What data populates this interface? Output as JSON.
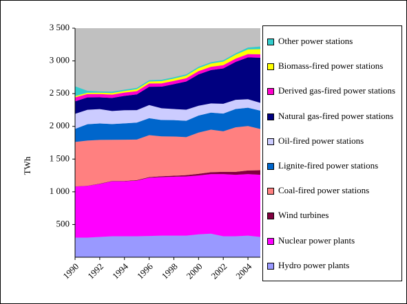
{
  "chart_data": {
    "type": "area",
    "y_label": "TWh",
    "x": [
      1990,
      1991,
      1992,
      1993,
      1994,
      1995,
      1996,
      1997,
      1998,
      1999,
      2000,
      2001,
      2002,
      2003,
      2004,
      2005
    ],
    "xlim": [
      1990,
      2005
    ],
    "xticks": [
      1990,
      1992,
      1994,
      1996,
      1998,
      2000,
      2002,
      2004
    ],
    "ylim": [
      0,
      3500
    ],
    "yticks": [
      500,
      {
        "value": 1000,
        "label": "1 000"
      },
      {
        "value": 1500,
        "label": "1 500"
      },
      {
        "value": 2000,
        "label": "2 000"
      },
      {
        "value": 2500,
        "label": "2 500"
      },
      {
        "value": 3000,
        "label": "3 000"
      },
      {
        "value": 3500,
        "label": "3 500"
      }
    ],
    "plot_background": "#c0c0c0",
    "legend": "right",
    "series": [
      {
        "name": "Hydro power plants",
        "color": "#9999ff",
        "values": [
          300,
          300,
          310,
          320,
          320,
          320,
          325,
          330,
          330,
          330,
          350,
          360,
          320,
          320,
          330,
          310
        ]
      },
      {
        "name": "Nuclear power plants",
        "color": "#ff00ff",
        "values": [
          780,
          790,
          810,
          840,
          840,
          850,
          890,
          895,
          900,
          905,
          900,
          910,
          950,
          940,
          940,
          950
        ]
      },
      {
        "name": "Wind turbines",
        "color": "#800040",
        "values": [
          2,
          3,
          4,
          5,
          6,
          8,
          10,
          12,
          15,
          20,
          25,
          30,
          35,
          45,
          55,
          70
        ]
      },
      {
        "name": "Coal-fired power stations",
        "color": "#ff8080",
        "values": [
          680,
          690,
          670,
          630,
          630,
          620,
          640,
          610,
          600,
          580,
          630,
          650,
          620,
          680,
          680,
          630
        ]
      },
      {
        "name": "Lignite-fired power stations",
        "color": "#0066cc",
        "values": [
          200,
          250,
          250,
          240,
          250,
          260,
          260,
          250,
          250,
          250,
          260,
          260,
          270,
          280,
          280,
          280
        ]
      },
      {
        "name": "Oil-fired power stations",
        "color": "#ccccff",
        "values": [
          230,
          220,
          220,
          200,
          200,
          190,
          200,
          180,
          170,
          170,
          150,
          140,
          150,
          140,
          130,
          120
        ]
      },
      {
        "name": "Natural gas-fired power stations",
        "color": "#000080",
        "values": [
          190,
          190,
          180,
          200,
          220,
          240,
          280,
          330,
          380,
          430,
          480,
          510,
          540,
          580,
          640,
          690
        ]
      },
      {
        "name": "Derived gas-fired power stations",
        "color": "#ff00cc",
        "values": [
          60,
          50,
          50,
          50,
          50,
          50,
          50,
          50,
          50,
          50,
          50,
          50,
          50,
          50,
          50,
          50
        ]
      },
      {
        "name": "Biomass-fired power stations",
        "color": "#ffff00",
        "values": [
          20,
          20,
          20,
          25,
          25,
          30,
          30,
          35,
          35,
          40,
          45,
          50,
          55,
          60,
          70,
          80
        ]
      },
      {
        "name": "Other power stations",
        "color": "#33cccc",
        "values": [
          150,
          30,
          20,
          20,
          20,
          20,
          20,
          20,
          20,
          20,
          20,
          20,
          20,
          20,
          30,
          40
        ]
      }
    ]
  }
}
